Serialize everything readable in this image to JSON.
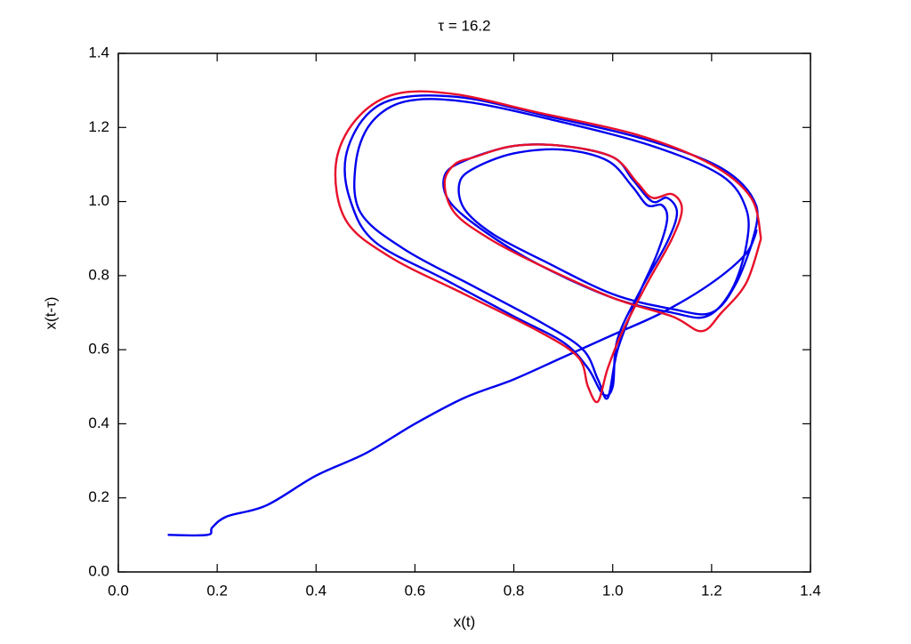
{
  "chart_data": {
    "type": "line",
    "title": "τ = 16.2",
    "x_label": "x(t)",
    "y_label": "x(t-τ)",
    "xlim": [
      0,
      1.4
    ],
    "ylim": [
      0,
      1.4
    ],
    "xticks": [
      {
        "value": 0,
        "label": "0.0"
      },
      0.2,
      0.4,
      0.6,
      0.8,
      {
        "value": 1,
        "label": "1.0"
      },
      1.2,
      1.4
    ],
    "yticks": [
      {
        "value": 0,
        "label": "0.0"
      },
      0.2,
      0.4,
      0.6,
      0.8,
      {
        "value": 1,
        "label": "1.0"
      },
      1.2,
      1.4
    ],
    "grid": false,
    "series": [
      {
        "color": "#0000ee",
        "x": [
          0.1,
          0.18,
          0.19,
          0.22,
          0.3,
          0.4,
          0.5,
          0.6,
          0.7,
          0.8,
          0.9,
          1.0,
          1.1,
          1.2,
          1.27,
          1.29,
          1.25,
          1.2,
          1.12,
          1.0,
          0.86,
          0.76,
          0.7,
          0.69,
          0.72,
          0.8,
          0.9,
          0.99,
          1.04,
          1.07,
          1.1,
          1.11,
          1.09,
          1.05,
          1.01,
          0.99,
          0.97,
          0.94,
          0.86,
          0.72,
          0.58,
          0.49,
          0.48,
          0.51,
          0.58,
          0.7,
          0.88,
          1.08,
          1.22,
          1.27,
          1.27,
          1.24,
          1.19,
          1.12,
          1.0,
          0.85,
          0.74,
          0.67,
          0.66,
          0.7,
          0.8,
          0.9,
          1.0,
          1.04,
          1.08,
          1.11,
          1.13,
          1.11,
          1.06,
          1.01,
          1.0,
          0.98,
          0.95,
          0.9,
          0.8,
          0.66,
          0.52,
          0.47,
          0.46,
          0.5,
          0.57,
          0.7,
          0.87,
          1.06,
          1.22,
          1.29,
          1.28
        ],
        "values": [
          0.1,
          0.1,
          0.12,
          0.15,
          0.18,
          0.26,
          0.32,
          0.4,
          0.47,
          0.52,
          0.58,
          0.64,
          0.7,
          0.78,
          0.86,
          0.92,
          0.78,
          0.7,
          0.71,
          0.75,
          0.84,
          0.91,
          0.98,
          1.05,
          1.09,
          1.13,
          1.14,
          1.11,
          1.04,
          0.99,
          0.99,
          0.95,
          0.86,
          0.74,
          0.6,
          0.47,
          0.52,
          0.6,
          0.67,
          0.77,
          0.87,
          0.97,
          1.1,
          1.21,
          1.27,
          1.27,
          1.22,
          1.15,
          1.07,
          0.98,
          0.88,
          0.76,
          0.69,
          0.7,
          0.74,
          0.83,
          0.92,
          1.0,
          1.07,
          1.11,
          1.15,
          1.15,
          1.12,
          1.06,
          1.0,
          1.01,
          0.97,
          0.89,
          0.77,
          0.63,
          0.5,
          0.48,
          0.55,
          0.62,
          0.69,
          0.79,
          0.89,
          1.0,
          1.12,
          1.23,
          1.28,
          1.28,
          1.23,
          1.17,
          1.09,
          0.99,
          0.88
        ]
      },
      {
        "color": "#e8102a",
        "x": [
          1.3,
          1.27,
          1.22,
          1.18,
          1.12,
          1.0,
          0.85,
          0.75,
          0.68,
          0.66,
          0.68,
          0.72,
          0.8,
          0.9,
          1.0,
          1.05,
          1.08,
          1.12,
          1.14,
          1.12,
          1.07,
          1.02,
          0.99,
          0.97,
          0.95,
          0.93,
          0.85,
          0.7,
          0.55,
          0.46,
          0.44,
          0.48,
          0.56,
          0.68,
          0.85,
          1.05,
          1.2,
          1.28,
          1.3
        ],
        "values": [
          0.9,
          0.78,
          0.7,
          0.65,
          0.69,
          0.74,
          0.83,
          0.9,
          0.97,
          1.05,
          1.1,
          1.12,
          1.15,
          1.15,
          1.12,
          1.05,
          1.01,
          1.02,
          0.98,
          0.9,
          0.78,
          0.65,
          0.55,
          0.46,
          0.5,
          0.58,
          0.65,
          0.75,
          0.85,
          0.95,
          1.1,
          1.22,
          1.29,
          1.29,
          1.24,
          1.18,
          1.1,
          1.01,
          0.9
        ]
      }
    ]
  }
}
